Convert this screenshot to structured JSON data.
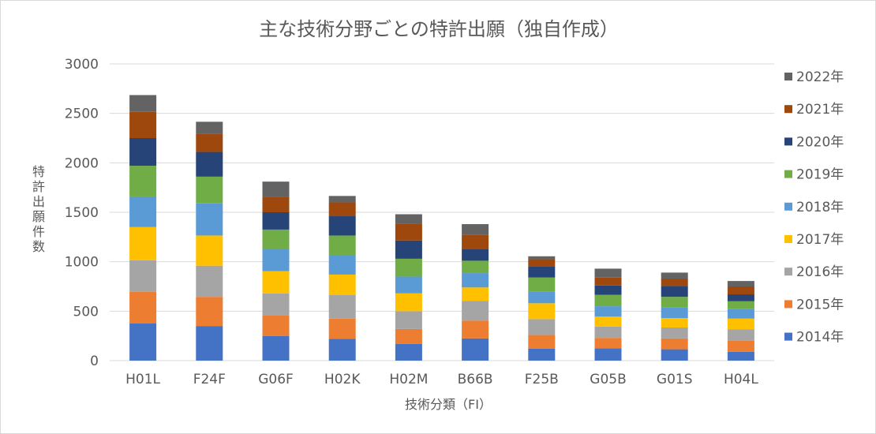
{
  "chart_data": {
    "type": "bar",
    "stacked": true,
    "title": "主な技術分野ごとの特許出願（独自作成）",
    "xlabel": "技術分類（FI）",
    "ylabel": "特許出願件数",
    "ylim": [
      0,
      3000
    ],
    "yticks": [
      0,
      500,
      1000,
      1500,
      2000,
      2500,
      3000
    ],
    "ytick_labels": [
      "0",
      "500",
      "1000",
      "1500",
      "2000",
      "2500",
      "3000"
    ],
    "grid": true,
    "legend_position": "right",
    "categories": [
      "H01L",
      "F24F",
      "G06F",
      "H02K",
      "H02M",
      "B66B",
      "F25B",
      "G05B",
      "G01S",
      "H04L"
    ],
    "series": [
      {
        "name": "2014年",
        "color": "#4472c4",
        "values": [
          375,
          350,
          250,
          220,
          170,
          225,
          120,
          125,
          115,
          90
        ]
      },
      {
        "name": "2015年",
        "color": "#ed7d31",
        "values": [
          320,
          295,
          205,
          205,
          150,
          180,
          140,
          105,
          110,
          110
        ]
      },
      {
        "name": "2016年",
        "color": "#a5a5a5",
        "values": [
          320,
          315,
          225,
          240,
          180,
          200,
          160,
          115,
          110,
          115
        ]
      },
      {
        "name": "2017年",
        "color": "#ffc000",
        "values": [
          335,
          305,
          225,
          205,
          180,
          135,
          160,
          100,
          95,
          110
        ]
      },
      {
        "name": "2018年",
        "color": "#5b9bd5",
        "values": [
          310,
          325,
          220,
          195,
          170,
          145,
          115,
          105,
          110,
          95
        ]
      },
      {
        "name": "2019年",
        "color": "#70ad47",
        "values": [
          310,
          270,
          200,
          200,
          180,
          125,
          145,
          115,
          105,
          80
        ]
      },
      {
        "name": "2020年",
        "color": "#264478",
        "values": [
          280,
          250,
          175,
          195,
          185,
          115,
          115,
          95,
          110,
          70
        ]
      },
      {
        "name": "2021年",
        "color": "#9e480e",
        "values": [
          265,
          185,
          155,
          140,
          170,
          150,
          70,
          80,
          75,
          80
        ]
      },
      {
        "name": "2022年",
        "color": "#636363",
        "values": [
          170,
          120,
          155,
          65,
          95,
          105,
          30,
          90,
          60,
          55
        ]
      }
    ]
  }
}
